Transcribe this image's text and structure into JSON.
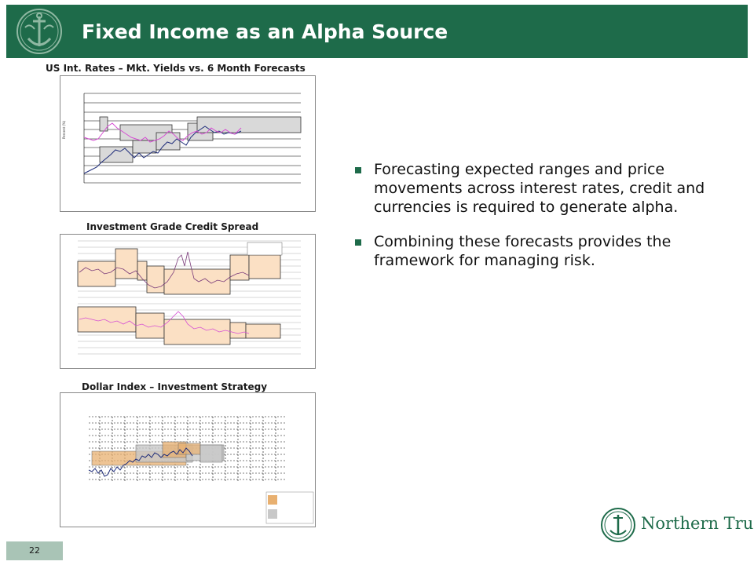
{
  "header": {
    "title": "Fixed Income as an Alpha Source"
  },
  "charts": {
    "rates_title": "US Int. Rates – Mkt. Yields vs. 6 Month Forecasts",
    "credit_title": "Investment Grade Credit Spread",
    "dollar_title": "Dollar Index – Investment Strategy"
  },
  "bullets": [
    {
      "text": "Forecasting expected ranges and price movements across interest rates, credit and currencies is required to generate alpha."
    },
    {
      "text": "Combining these forecasts provides the framework for managing risk."
    }
  ],
  "footer": {
    "page_number": "22",
    "logo_text": "Northern Trust"
  },
  "colors": {
    "brand_green": "#1e6b4a",
    "page_tab": "#a9c4b6",
    "forecast_box_gray": "#d9d9d9",
    "forecast_box_orange": "#fbe0c4",
    "series_navy": "#1f2d7a",
    "series_magenta": "#d64fd4"
  }
}
